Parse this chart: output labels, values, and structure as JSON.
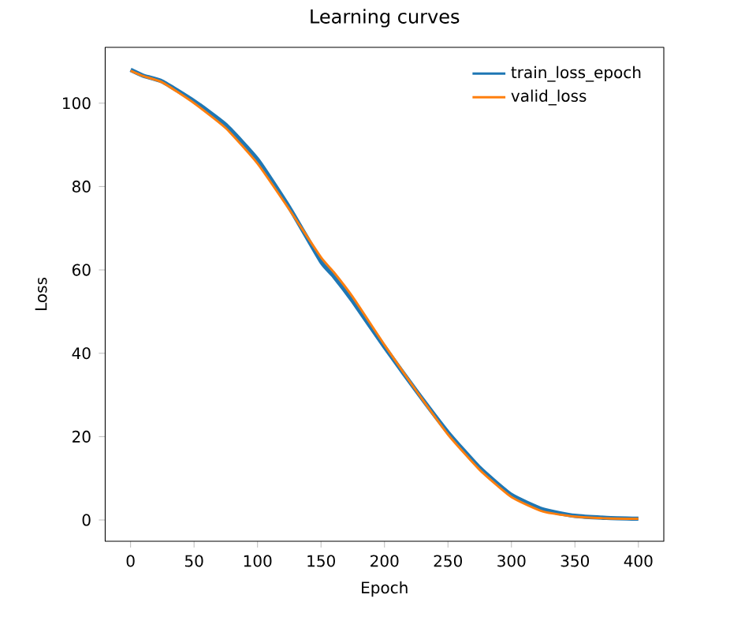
{
  "chart_data": {
    "type": "line",
    "title": "Learning curves",
    "xlabel": "Epoch",
    "ylabel": "Loss",
    "x": [
      0,
      10,
      25,
      50,
      75,
      100,
      125,
      150,
      160,
      175,
      200,
      225,
      250,
      275,
      300,
      325,
      350,
      375,
      400
    ],
    "series": [
      {
        "name": "train_loss_epoch",
        "color": "#1f77b4",
        "values": [
          108,
          106.6,
          105.2,
          100.5,
          94.8,
          86.5,
          75,
          62,
          58.5,
          52.5,
          41.5,
          31,
          21,
          12.5,
          6,
          2.5,
          1,
          0.5,
          0.3
        ]
      },
      {
        "name": "valid_loss",
        "color": "#ff7f0e",
        "values": [
          107.8,
          106.5,
          105,
          100,
          94,
          85.5,
          74.5,
          63,
          59.5,
          53.5,
          42,
          31,
          20.5,
          12,
          5.5,
          2,
          0.8,
          0.4,
          0.3
        ]
      }
    ],
    "xlim": [
      -20,
      420
    ],
    "ylim": [
      -5.1,
      113.4
    ],
    "xticks": [
      0,
      50,
      100,
      150,
      200,
      250,
      300,
      350,
      400
    ],
    "yticks": [
      0,
      20,
      40,
      60,
      80,
      100
    ],
    "grid": false,
    "legend": "top right",
    "marker": "none",
    "line_style": "solid"
  }
}
